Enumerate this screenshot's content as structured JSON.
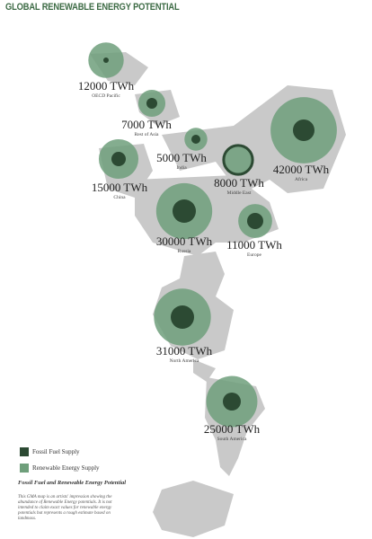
{
  "title": "GLOBAL RENEWABLE ENERGY POTENTIAL",
  "renewable_color": "#6f9f7b",
  "fossil_color": "#2c4a33",
  "regions": [
    {
      "value": 12000,
      "value_label": "12000 TWh",
      "name": "OECD Pacific"
    },
    {
      "value": 7000,
      "value_label": "7000 TWh",
      "name": "Rest of Asia"
    },
    {
      "value": 5000,
      "value_label": "5000 TWh",
      "name": "India"
    },
    {
      "value": 15000,
      "value_label": "15000 TWh",
      "name": "China"
    },
    {
      "value": 8000,
      "value_label": "8000 TWh",
      "name": "Middle East"
    },
    {
      "value": 42000,
      "value_label": "42000 TWh",
      "name": "Africa"
    },
    {
      "value": 30000,
      "value_label": "30000 TWh",
      "name": "Russia"
    },
    {
      "value": 11000,
      "value_label": "11000 TWh",
      "name": "Europe"
    },
    {
      "value": 31000,
      "value_label": "31000 TWh",
      "name": "North America"
    },
    {
      "value": 25000,
      "value_label": "25000 TWh",
      "name": "South America"
    }
  ],
  "legend": {
    "fossil": "Fossil Fuel Supply",
    "renewable": "Renewable Energy Supply"
  },
  "note": {
    "title": "Fossil Fuel and Renewable Energy Potential",
    "text": "This GMA map is an artists' impression showing the abundance of Renewable Energy potentials. It is not intended to claim exact values for renewable energy potentials but represents a rough estimate based on landmass."
  }
}
